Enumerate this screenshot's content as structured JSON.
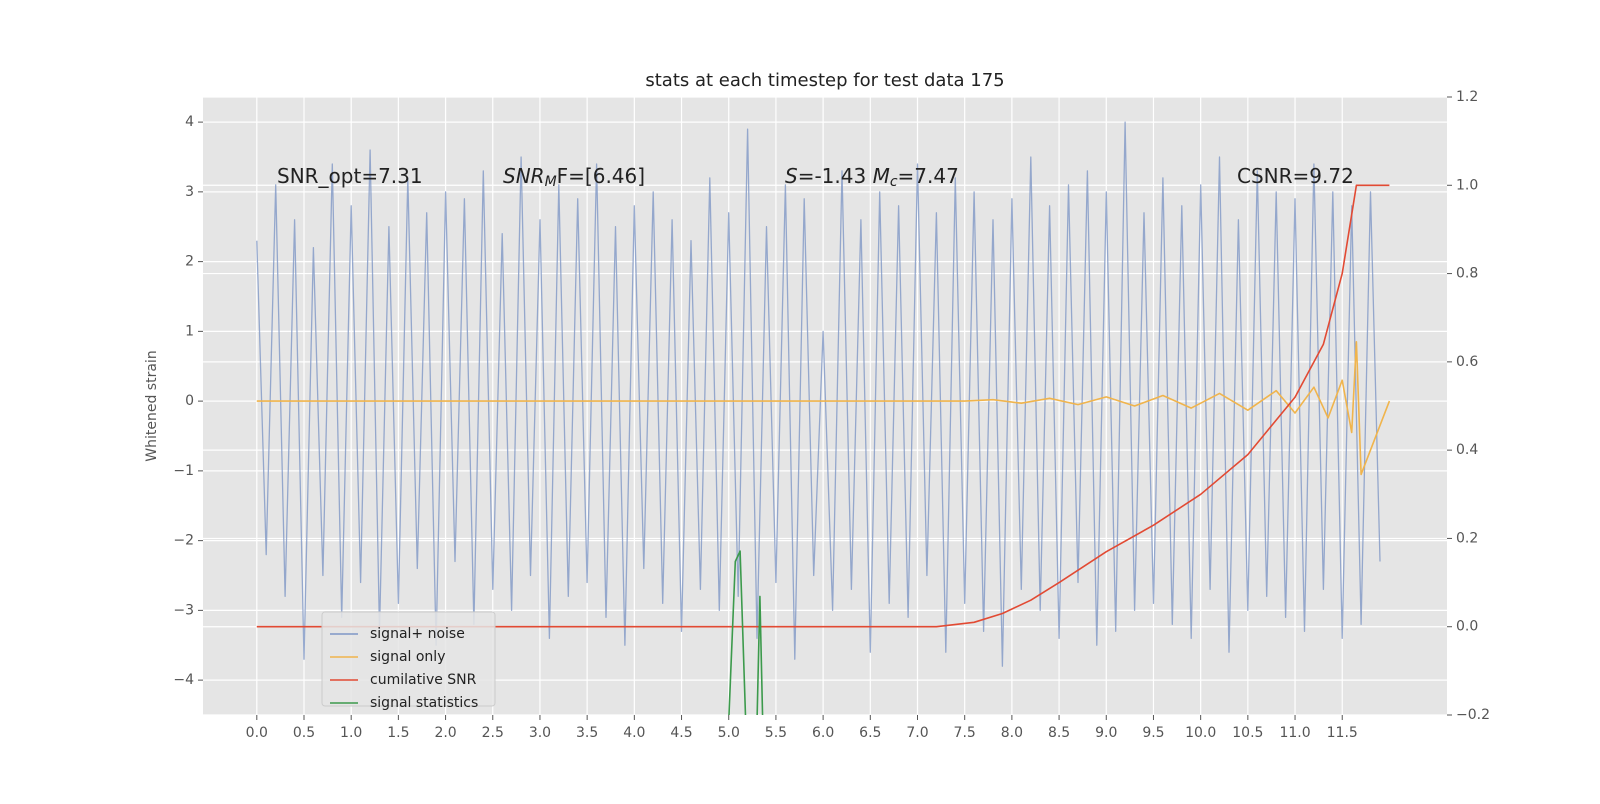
{
  "chart_data": {
    "type": "line",
    "title": "stats at each timestep for test data 175",
    "y_label": "Whitened strain",
    "annotations": [
      [
        "SNR_opt=7.31"
      ],
      [
        "SNR",
        "M",
        "F=[6.46]"
      ],
      [
        "S",
        "=-1.43  ",
        "M",
        "c",
        "=7.47"
      ],
      [
        "CSNR=9.72"
      ]
    ],
    "xlim": [
      -0.57,
      12.61
    ],
    "ylim": [
      -4.5,
      4.36
    ],
    "y2lim": [
      -0.2,
      1.2
    ],
    "xticks": [
      {
        "value": 0,
        "label": "0.0"
      },
      0.5,
      {
        "value": 1,
        "label": "1.0"
      },
      1.5,
      {
        "value": 2,
        "label": "2.0"
      },
      2.5,
      {
        "value": 3,
        "label": "3.0"
      },
      3.5,
      {
        "value": 4,
        "label": "4.0"
      },
      4.5,
      {
        "value": 5,
        "label": "5.0"
      },
      5.5,
      {
        "value": 6,
        "label": "6.0"
      },
      6.5,
      {
        "value": 7,
        "label": "7.0"
      },
      7.5,
      {
        "value": 8,
        "label": "8.0"
      },
      8.5,
      {
        "value": 9,
        "label": "9.0"
      },
      9.5,
      {
        "value": 10,
        "label": "10.0"
      },
      10.5,
      {
        "value": 11,
        "label": "11.0"
      },
      11.5
    ],
    "yticks": [
      {
        "value": -4,
        "label": "−4"
      },
      {
        "value": -3,
        "label": "−3"
      },
      {
        "value": -2,
        "label": "−2"
      },
      {
        "value": -1,
        "label": "−1"
      },
      0,
      1,
      2,
      3,
      4
    ],
    "y2ticks": [
      {
        "value": -0.2,
        "label": "−0.2"
      },
      {
        "value": 0,
        "label": "0.0"
      },
      0.2,
      0.4,
      0.6,
      0.8,
      {
        "value": 1,
        "label": "1.0"
      },
      1.2
    ],
    "grid": true,
    "legend": "lower left",
    "series": [
      {
        "name": "signal+ noise",
        "color": "#7f97c6",
        "x": [
          0,
          0.1,
          0.2,
          0.3,
          0.4,
          0.5,
          0.6,
          0.7,
          0.8,
          0.9,
          1,
          1.1,
          1.2,
          1.3,
          1.4,
          1.5,
          1.6,
          1.7,
          1.8,
          1.9,
          2,
          2.1,
          2.2,
          2.3,
          2.4,
          2.5,
          2.6,
          2.7,
          2.8,
          2.9,
          3,
          3.1,
          3.2,
          3.3,
          3.4,
          3.5,
          3.6,
          3.7,
          3.8,
          3.9,
          4,
          4.1,
          4.2,
          4.3,
          4.4,
          4.5,
          4.6,
          4.7,
          4.8,
          4.9,
          5,
          5.1,
          5.2,
          5.3,
          5.4,
          5.5,
          5.6,
          5.7,
          5.8,
          5.9,
          6,
          6.1,
          6.2,
          6.3,
          6.4,
          6.5,
          6.6,
          6.7,
          6.8,
          6.9,
          7,
          7.1,
          7.2,
          7.3,
          7.4,
          7.5,
          7.6,
          7.7,
          7.8,
          7.9,
          8,
          8.1,
          8.2,
          8.3,
          8.4,
          8.5,
          8.6,
          8.7,
          8.8,
          8.9,
          9,
          9.1,
          9.2,
          9.3,
          9.4,
          9.5,
          9.6,
          9.7,
          9.8,
          9.9,
          10,
          10.1,
          10.2,
          10.3,
          10.4,
          10.5,
          10.6,
          10.7,
          10.8,
          10.9,
          11,
          11.1,
          11.2,
          11.3,
          11.4,
          11.5,
          11.6,
          11.7,
          11.8,
          11.9
        ],
        "values": [
          2.3,
          -2.2,
          3.1,
          -2.8,
          2.6,
          -3.7,
          2.2,
          -2.5,
          3.4,
          -3.1,
          2.8,
          -2.6,
          3.6,
          -3.3,
          2.5,
          -2.9,
          3.2,
          -2.4,
          2.7,
          -3.5,
          3.0,
          -2.3,
          2.9,
          -3.2,
          3.3,
          -2.7,
          2.4,
          -3.0,
          3.5,
          -2.5,
          2.6,
          -3.4,
          3.1,
          -2.8,
          2.9,
          -2.6,
          3.4,
          -3.1,
          2.5,
          -3.5,
          2.8,
          -2.4,
          3.0,
          -2.9,
          2.6,
          -3.3,
          2.3,
          -2.7,
          3.2,
          -3.0,
          2.7,
          -2.8,
          3.9,
          -3.4,
          2.5,
          -2.6,
          3.1,
          -3.7,
          2.9,
          -2.5,
          1.0,
          -3.0,
          3.3,
          -2.7,
          2.6,
          -3.6,
          3.0,
          -2.9,
          2.8,
          -3.1,
          3.4,
          -2.5,
          2.7,
          -3.6,
          3.2,
          -2.9,
          3.0,
          -3.3,
          2.6,
          -3.8,
          2.9,
          -2.7,
          3.5,
          -3.0,
          2.8,
          -3.4,
          3.1,
          -2.6,
          3.3,
          -3.5,
          3.0,
          -3.3,
          4.0,
          -3.0,
          2.7,
          -2.9,
          3.2,
          -3.2,
          2.8,
          -3.4,
          3.1,
          -2.7,
          3.5,
          -3.6,
          2.6,
          -3.0,
          3.3,
          -2.8,
          3.0,
          -3.1,
          2.9,
          -3.3,
          3.4,
          -2.7,
          3.0,
          -3.4,
          2.8,
          -3.2,
          3.0,
          -2.3
        ]
      },
      {
        "name": "signal only",
        "color": "#f0b44c",
        "x": [
          0,
          7.5,
          7.8,
          8.1,
          8.4,
          8.7,
          9.0,
          9.3,
          9.6,
          9.9,
          10.2,
          10.5,
          10.8,
          11.0,
          11.2,
          11.35,
          11.5,
          11.6,
          11.65,
          11.7,
          12.0
        ],
        "values": [
          0,
          0,
          0.02,
          -0.03,
          0.04,
          -0.05,
          0.06,
          -0.07,
          0.08,
          -0.1,
          0.11,
          -0.13,
          0.15,
          -0.17,
          0.2,
          -0.24,
          0.3,
          -0.45,
          0.85,
          -1.05,
          0
        ]
      },
      {
        "name": "cumilative SNR",
        "color": "#e24a33",
        "axis": "y2",
        "x": [
          0,
          7.2,
          7.6,
          7.9,
          8.2,
          8.5,
          9.0,
          9.5,
          10.0,
          10.5,
          11.0,
          11.3,
          11.5,
          11.65,
          12.0
        ],
        "values": [
          0,
          0,
          0.01,
          0.03,
          0.06,
          0.1,
          0.17,
          0.23,
          0.3,
          0.39,
          0.52,
          0.64,
          0.8,
          1.0,
          1.0
        ]
      },
      {
        "name": "signal statistics",
        "color": "#3c9a4c",
        "x": [
          5.0,
          5.07,
          5.12,
          5.18,
          5.3,
          5.33,
          5.36
        ],
        "values": [
          -4.6,
          -2.3,
          -2.15,
          -4.6,
          -4.6,
          -2.8,
          -4.6
        ]
      }
    ]
  }
}
